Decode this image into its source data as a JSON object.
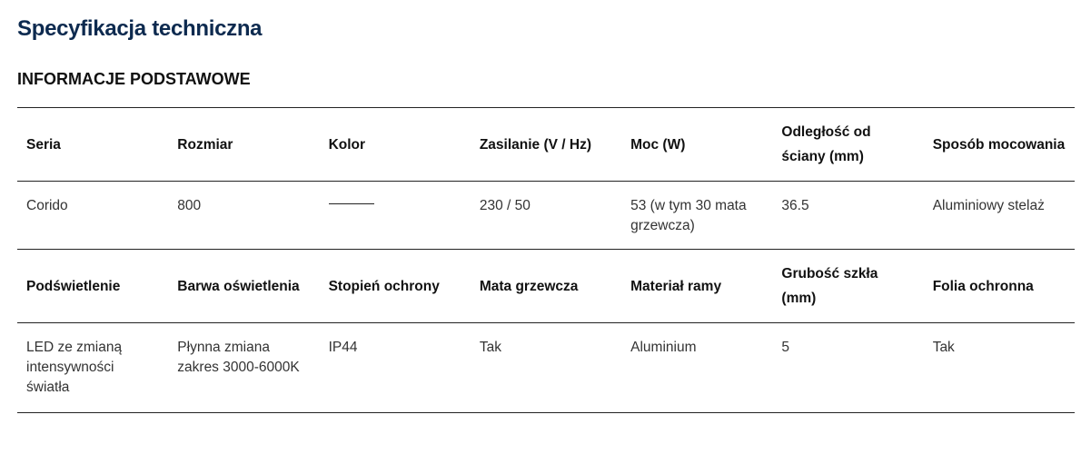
{
  "title": "Specyfikacja techniczna",
  "section": "INFORMACJE PODSTAWOWE",
  "rows": [
    {
      "headers": [
        "Seria",
        "Rozmiar",
        "Kolor",
        "Zasilanie (V / Hz)",
        "Moc (W)",
        "Odległość od ściany (mm)",
        "Sposób mocowania"
      ],
      "values": [
        "Corido",
        "800",
        "",
        "230 / 50",
        "53 (w tym 30 mata grzewcza)",
        "36.5",
        "Aluminiowy stelaż"
      ]
    },
    {
      "headers": [
        "Podświetlenie",
        "Barwa oświetlenia",
        "Stopień ochrony",
        "Mata grzewcza",
        "Materiał ramy",
        "Grubość szkła (mm)",
        "Folia ochronna"
      ],
      "values": [
        "LED ze zmianą intensywności światła",
        "Płynna zmiana zakres 3000-6000K",
        "IP44",
        "Tak",
        "Aluminium",
        "5",
        "Tak"
      ]
    }
  ],
  "kolor_swatch_color": "#222222"
}
